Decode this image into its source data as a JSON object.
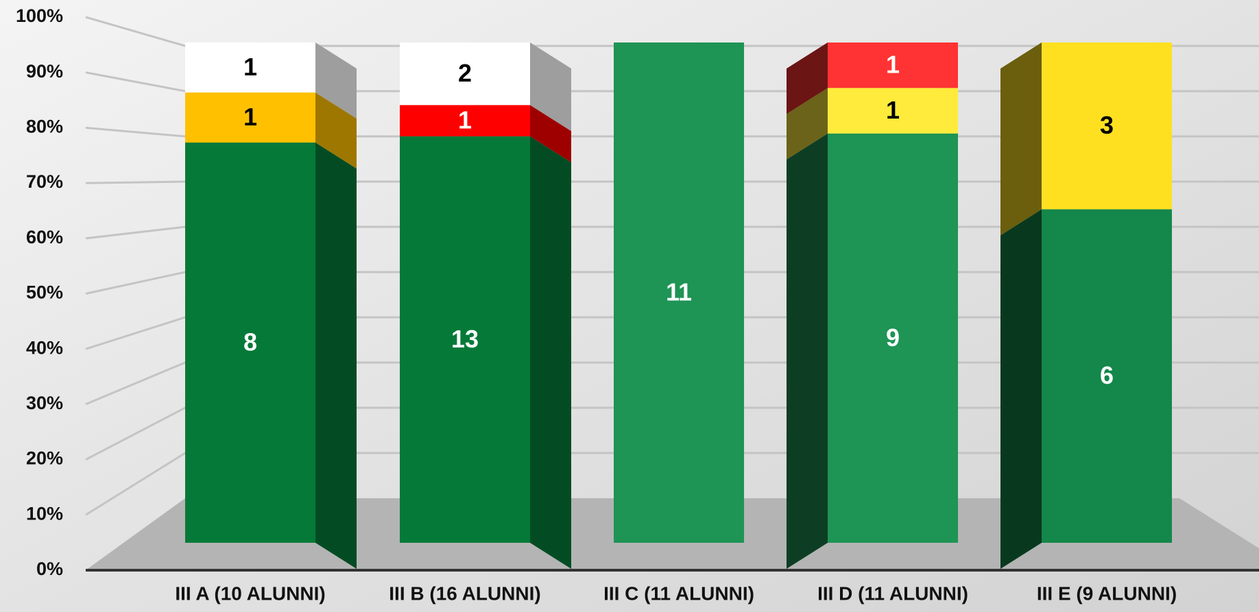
{
  "chart_data": {
    "type": "bar",
    "stacking": "percent",
    "categories": [
      "III A (10 ALUNNI)",
      "III B (16 ALUNNI)",
      "III C (11 ALUNNI)",
      "III D (11 ALUNNI)",
      "III E (9 ALUNNI)"
    ],
    "series": [
      {
        "color": "#057a38",
        "colors": [
          "#057a38",
          "#057a38",
          "#1e9455",
          "#1e9455",
          "#14874a"
        ],
        "label_color": "#ffffff",
        "values": [
          8,
          13,
          11,
          9,
          6
        ]
      },
      {
        "color": "#ffc000",
        "colors": [
          "#ffc000",
          null,
          null,
          "#ffeb3b",
          "#ffe020"
        ],
        "label_color": "#000000",
        "values": [
          1,
          null,
          null,
          1,
          3
        ]
      },
      {
        "color": "#ff1a1a",
        "colors": [
          null,
          "#ff0000",
          null,
          "#ff3333",
          null
        ],
        "label_color": "#ffffff",
        "values": [
          null,
          1,
          null,
          1,
          null
        ]
      },
      {
        "color": "#ffffff",
        "colors": [
          "#ffffff",
          "#ffffff",
          null,
          null,
          null
        ],
        "label_color": "#000000",
        "values": [
          1,
          2,
          null,
          null,
          null
        ]
      }
    ],
    "side_faces": [
      "right",
      "right",
      "none",
      "left",
      "left"
    ],
    "ylim": [
      0,
      100
    ],
    "yticks": [
      {
        "value": 0,
        "label": "0%"
      },
      {
        "value": 10,
        "label": "10%"
      },
      {
        "value": 20,
        "label": "20%"
      },
      {
        "value": 30,
        "label": "30%"
      },
      {
        "value": 40,
        "label": "40%"
      },
      {
        "value": 50,
        "label": "50%"
      },
      {
        "value": 60,
        "label": "60%"
      },
      {
        "value": 70,
        "label": "70%"
      },
      {
        "value": 80,
        "label": "80%"
      },
      {
        "value": 90,
        "label": "90%"
      },
      {
        "value": 100,
        "label": "100%"
      }
    ],
    "grid": true
  }
}
